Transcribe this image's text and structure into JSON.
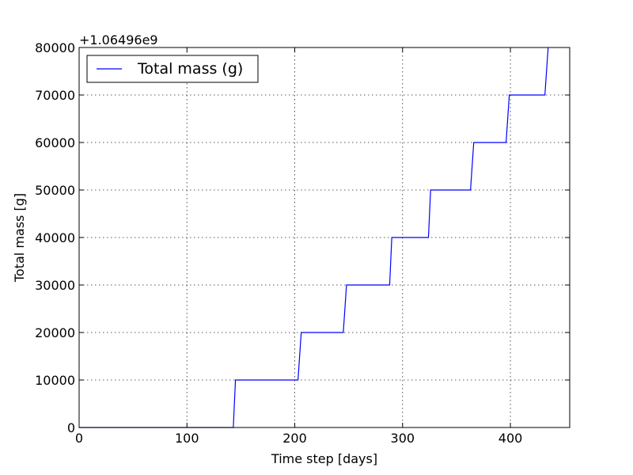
{
  "chart_data": {
    "type": "line",
    "title": "",
    "xlabel": "Time step [days]",
    "ylabel": "Total mass [g]",
    "y_offset_text": "+1.06496e9",
    "y_offset_value": 1064960000,
    "xlim": [
      0,
      455
    ],
    "ylim": [
      0,
      80000
    ],
    "x_ticks": [
      0,
      100,
      200,
      300,
      400
    ],
    "y_ticks": [
      0,
      10000,
      20000,
      30000,
      40000,
      50000,
      60000,
      70000,
      80000
    ],
    "grid": true,
    "legend_position": "top-left",
    "series": [
      {
        "name": "Total mass (g)",
        "color": "#0000ff",
        "x": [
          0,
          143,
          145,
          203,
          206,
          245,
          248,
          288,
          290,
          324,
          326,
          363,
          366,
          396,
          399,
          432,
          435
        ],
        "y": [
          0,
          0,
          10000,
          10000,
          20000,
          20000,
          30000,
          30000,
          40000,
          40000,
          50000,
          50000,
          60000,
          60000,
          70000,
          70000,
          80000
        ]
      }
    ]
  }
}
